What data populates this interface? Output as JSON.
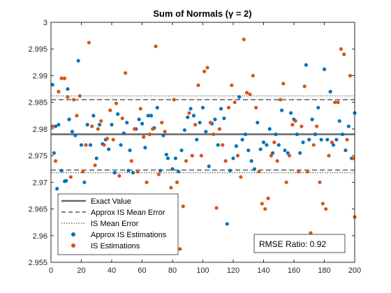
{
  "chart_data": {
    "type": "scatter",
    "title": "Sum of Normals (γ = 2)",
    "xlabel": "",
    "ylabel": "",
    "xlim": [
      0,
      200
    ],
    "ylim": [
      2.955,
      3.0
    ],
    "xticks": [
      0,
      20,
      40,
      60,
      80,
      100,
      120,
      140,
      160,
      180,
      200
    ],
    "yticks": [
      2.955,
      2.96,
      2.965,
      2.97,
      2.975,
      2.98,
      2.985,
      2.99,
      2.995,
      3.0
    ],
    "xtick_labels": [
      "0",
      "20",
      "40",
      "60",
      "80",
      "100",
      "120",
      "140",
      "160",
      "180",
      "200"
    ],
    "ytick_labels": [
      "2.955",
      "2.96",
      "2.965",
      "2.97",
      "2.975",
      "2.98",
      "2.985",
      "2.99",
      "2.995",
      "3"
    ],
    "grid": false,
    "legend_position": "bottom-left",
    "lines": [
      {
        "name": "Exact Value",
        "style": "solid",
        "color": "#666666",
        "values": [
          2.979
        ]
      },
      {
        "name": "Approx IS Mean Error",
        "style": "dashed",
        "color": "#808080",
        "values": [
          2.9855,
          2.9723
        ]
      },
      {
        "name": "IS Mean Error",
        "style": "dotted",
        "color": "#777777",
        "values": [
          2.9862,
          2.9718
        ]
      }
    ],
    "series": [
      {
        "name": "Approx IS Estimations",
        "color": "#0072BD",
        "points": [
          [
            1,
            2.9883
          ],
          [
            2,
            2.9755
          ],
          [
            3,
            2.9805
          ],
          [
            4,
            2.9688
          ],
          [
            5,
            2.9808
          ],
          [
            7,
            2.9722
          ],
          [
            9,
            2.9702
          ],
          [
            10,
            2.9703
          ],
          [
            11,
            2.9875
          ],
          [
            12,
            2.9818
          ],
          [
            14,
            2.9795
          ],
          [
            16,
            2.9788
          ],
          [
            18,
            2.9928
          ],
          [
            20,
            2.977
          ],
          [
            22,
            2.97
          ],
          [
            24,
            2.9808
          ],
          [
            26,
            2.977
          ],
          [
            28,
            2.9825
          ],
          [
            30,
            2.9745
          ],
          [
            32,
            2.9808
          ],
          [
            34,
            2.9772
          ],
          [
            36,
            2.978
          ],
          [
            38,
            2.9762
          ],
          [
            40,
            2.9808
          ],
          [
            42,
            2.9718
          ],
          [
            44,
            2.9828
          ],
          [
            46,
            2.977
          ],
          [
            48,
            2.9792
          ],
          [
            50,
            2.9812
          ],
          [
            51,
            2.9722
          ],
          [
            52,
            2.976
          ],
          [
            54,
            2.9718
          ],
          [
            56,
            2.98
          ],
          [
            58,
            2.9818
          ],
          [
            60,
            2.981
          ],
          [
            62,
            2.9765
          ],
          [
            64,
            2.9825
          ],
          [
            66,
            2.9825
          ],
          [
            68,
            2.9802
          ],
          [
            70,
            2.984
          ],
          [
            72,
            2.9722
          ],
          [
            74,
            2.9788
          ],
          [
            76,
            2.9752
          ],
          [
            77,
            2.9745
          ],
          [
            80,
            2.9725
          ],
          [
            82,
            2.9745
          ],
          [
            84,
            2.972
          ],
          [
            86,
            2.976
          ],
          [
            88,
            2.9798
          ],
          [
            90,
            2.9822
          ],
          [
            92,
            2.9838
          ],
          [
            94,
            2.9825
          ],
          [
            96,
            2.978
          ],
          [
            98,
            2.9812
          ],
          [
            100,
            2.984
          ],
          [
            102,
            2.9795
          ],
          [
            104,
            2.973
          ],
          [
            106,
            2.981
          ],
          [
            108,
            2.9818
          ],
          [
            110,
            2.977
          ],
          [
            112,
            2.9838
          ],
          [
            114,
            2.982
          ],
          [
            116,
            2.9622
          ],
          [
            118,
            2.9722
          ],
          [
            120,
            2.9745
          ],
          [
            122,
            2.9768
          ],
          [
            124,
            2.986
          ],
          [
            126,
            2.978
          ],
          [
            128,
            2.979
          ],
          [
            130,
            2.976
          ],
          [
            132,
            2.974
          ],
          [
            134,
            2.9725
          ],
          [
            136,
            2.9812
          ],
          [
            138,
            2.9762
          ],
          [
            140,
            2.9775
          ],
          [
            142,
            2.977
          ],
          [
            144,
            2.98
          ],
          [
            146,
            2.9755
          ],
          [
            148,
            2.979
          ],
          [
            150,
            2.977
          ],
          [
            152,
            2.9835
          ],
          [
            154,
            2.976
          ],
          [
            156,
            2.9755
          ],
          [
            158,
            2.983
          ],
          [
            160,
            2.9818
          ],
          [
            162,
            2.979
          ],
          [
            164,
            2.9755
          ],
          [
            166,
            2.9775
          ],
          [
            168,
            2.992
          ],
          [
            170,
            2.978
          ],
          [
            172,
            2.9818
          ],
          [
            174,
            2.979
          ],
          [
            176,
            2.984
          ],
          [
            178,
            2.978
          ],
          [
            180,
            2.9912
          ],
          [
            182,
            2.978
          ],
          [
            184,
            2.987
          ],
          [
            186,
            2.977
          ],
          [
            188,
            2.978
          ],
          [
            190,
            2.9815
          ],
          [
            192,
            2.979
          ],
          [
            194,
            2.976
          ],
          [
            196,
            2.9805
          ],
          [
            198,
            2.9745
          ],
          [
            200,
            2.983
          ]
        ]
      },
      {
        "name": "IS Estimations",
        "color": "#D95319",
        "points": [
          [
            1,
            2.9805
          ],
          [
            3,
            2.974
          ],
          [
            5,
            2.987
          ],
          [
            7,
            2.9895
          ],
          [
            9,
            2.9895
          ],
          [
            11,
            2.986
          ],
          [
            13,
            2.971
          ],
          [
            15,
            2.9855
          ],
          [
            17,
            2.9825
          ],
          [
            19,
            2.9862
          ],
          [
            21,
            2.972
          ],
          [
            23,
            2.977
          ],
          [
            25,
            2.9962
          ],
          [
            27,
            2.9805
          ],
          [
            29,
            2.9732
          ],
          [
            31,
            2.98
          ],
          [
            33,
            2.9815
          ],
          [
            35,
            2.977
          ],
          [
            37,
            2.9782
          ],
          [
            39,
            2.9835
          ],
          [
            41,
            2.978
          ],
          [
            43,
            2.9848
          ],
          [
            45,
            2.9712
          ],
          [
            47,
            2.982
          ],
          [
            49,
            2.9905
          ],
          [
            53,
            2.974
          ],
          [
            55,
            2.98
          ],
          [
            57,
            2.972
          ],
          [
            59,
            2.9838
          ],
          [
            61,
            2.9785
          ],
          [
            63,
            2.97
          ],
          [
            65,
            2.979
          ],
          [
            67,
            2.98
          ],
          [
            69,
            2.9955
          ],
          [
            71,
            2.9715
          ],
          [
            73,
            2.9812
          ],
          [
            75,
            2.9795
          ],
          [
            79,
            2.969
          ],
          [
            81,
            2.9855
          ],
          [
            83,
            2.97
          ],
          [
            85,
            2.9575
          ],
          [
            87,
            2.9655
          ],
          [
            89,
            2.974
          ],
          [
            91,
            2.983
          ],
          [
            93,
            2.975
          ],
          [
            95,
            2.9808
          ],
          [
            97,
            2.9882
          ],
          [
            99,
            2.975
          ],
          [
            101,
            2.9908
          ],
          [
            103,
            2.9915
          ],
          [
            105,
            2.9812
          ],
          [
            107,
            2.979
          ],
          [
            109,
            2.9652
          ],
          [
            111,
            2.98
          ],
          [
            113,
            2.977
          ],
          [
            115,
            2.974
          ],
          [
            117,
            2.984
          ],
          [
            119,
            2.9882
          ],
          [
            121,
            2.985
          ],
          [
            123,
            2.975
          ],
          [
            125,
            2.971
          ],
          [
            127,
            2.9968
          ],
          [
            129,
            2.9868
          ],
          [
            131,
            2.9865
          ],
          [
            133,
            2.99
          ],
          [
            135,
            2.984
          ],
          [
            137,
            2.972
          ],
          [
            139,
            2.966
          ],
          [
            141,
            2.965
          ],
          [
            143,
            2.967
          ],
          [
            145,
            2.975
          ],
          [
            147,
            2.9775
          ],
          [
            149,
            2.974
          ],
          [
            151,
            2.9855
          ],
          [
            153,
            2.9885
          ],
          [
            155,
            2.97
          ],
          [
            157,
            2.975
          ],
          [
            159,
            2.9808
          ],
          [
            161,
            2.9815
          ],
          [
            163,
            2.972
          ],
          [
            165,
            2.9805
          ],
          [
            167,
            2.988
          ],
          [
            169,
            2.972
          ],
          [
            171,
            2.9605
          ],
          [
            173,
            2.977
          ],
          [
            175,
            2.9805
          ],
          [
            177,
            2.97
          ],
          [
            179,
            2.966
          ],
          [
            181,
            2.965
          ],
          [
            183,
            2.975
          ],
          [
            185,
            2.9775
          ],
          [
            187,
            2.985
          ],
          [
            189,
            2.985
          ],
          [
            191,
            2.995
          ],
          [
            193,
            2.994
          ],
          [
            195,
            2.978
          ],
          [
            197,
            2.99
          ],
          [
            199,
            2.9745
          ],
          [
            200,
            2.9635
          ]
        ]
      }
    ],
    "legend": [
      {
        "label": "Exact Value",
        "kind": "solid"
      },
      {
        "label": "Approx IS Mean Error",
        "kind": "dashed"
      },
      {
        "label": "IS Mean Error",
        "kind": "dotted"
      },
      {
        "label": "Approx IS Estimations",
        "kind": "marker-blue"
      },
      {
        "label": "IS Estimations",
        "kind": "marker-orange"
      }
    ],
    "annotation": "RMSE Ratio: 0.92"
  }
}
